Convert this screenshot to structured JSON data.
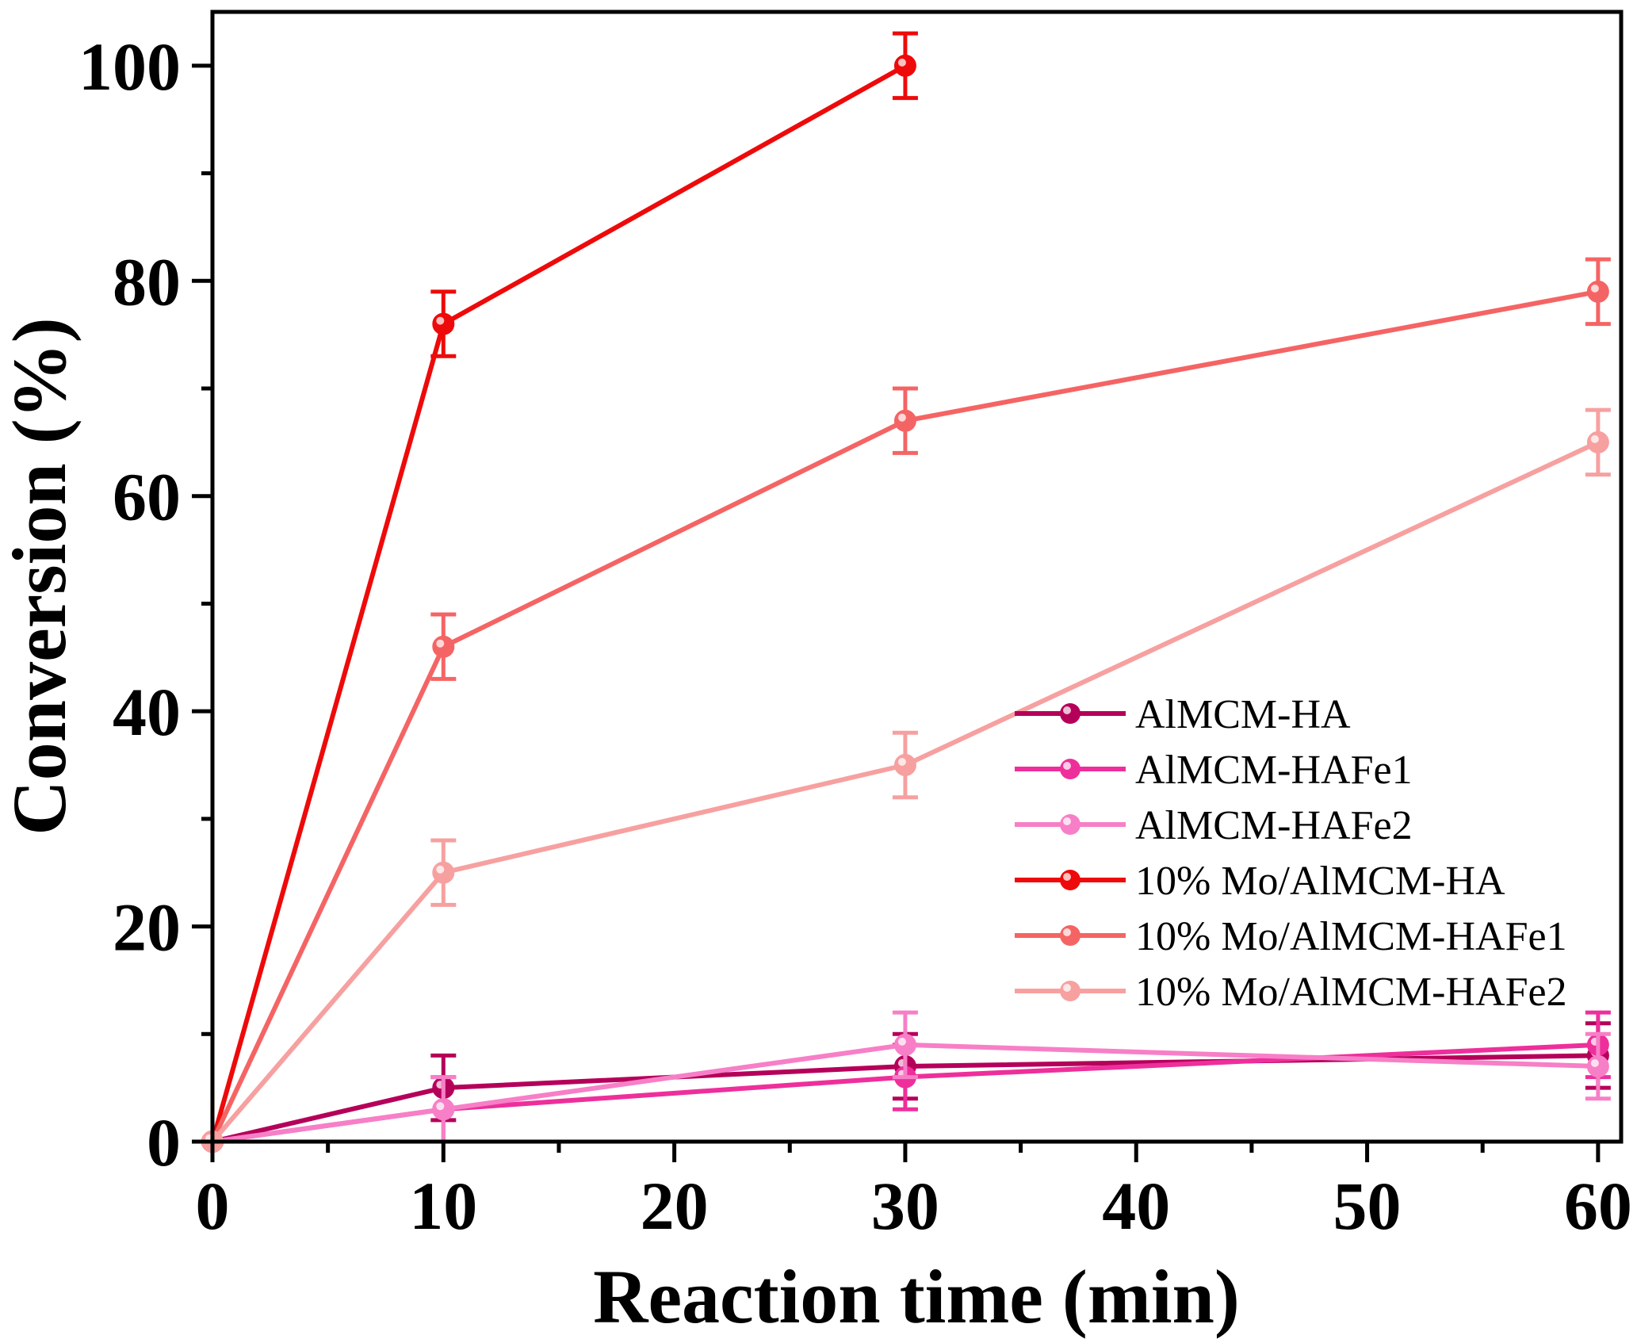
{
  "chart_data": {
    "type": "line",
    "title": "",
    "xlabel": "Reaction time (min)",
    "ylabel": "Conversion (%)",
    "xlim": [
      0,
      61
    ],
    "ylim": [
      0,
      105
    ],
    "xticks": [
      0,
      10,
      20,
      30,
      40,
      50,
      60
    ],
    "xtick_labels": [
      "0",
      "10",
      "20",
      "30",
      "40",
      "50",
      "60"
    ],
    "yticks": [
      0,
      20,
      40,
      60,
      80,
      100
    ],
    "ytick_labels": [
      "0",
      "20",
      "40",
      "60",
      "80",
      "100"
    ],
    "x_minor_step": 5,
    "y_minor_step": 10,
    "legend_position": "lower-right",
    "series": [
      {
        "name": "AlMCM-HA",
        "color": "#b5005a",
        "x": [
          0,
          10,
          30,
          60
        ],
        "y": [
          0,
          5,
          7,
          8
        ],
        "err": [
          0,
          3,
          3,
          3
        ]
      },
      {
        "name": "AlMCM-HAFe1",
        "color": "#ee2f9b",
        "x": [
          0,
          10,
          30,
          60
        ],
        "y": [
          0,
          3,
          6,
          9
        ],
        "err": [
          0,
          3,
          3,
          3
        ]
      },
      {
        "name": "AlMCM-HAFe2",
        "color": "#f77fc7",
        "x": [
          0,
          10,
          30,
          60
        ],
        "y": [
          0,
          3,
          9,
          7
        ],
        "err": [
          0,
          3,
          3,
          3
        ]
      },
      {
        "name": "10% Mo/AlMCM-HA",
        "color": "#ee0a0a",
        "x": [
          0,
          10,
          30
        ],
        "y": [
          0,
          76,
          100
        ],
        "err": [
          0,
          3,
          3
        ]
      },
      {
        "name": "10% Mo/AlMCM-HAFe1",
        "color": "#f56464",
        "x": [
          0,
          10,
          30,
          60
        ],
        "y": [
          0,
          46,
          67,
          79
        ],
        "err": [
          0,
          3,
          3,
          3
        ]
      },
      {
        "name": "10% Mo/AlMCM-HAFe2",
        "color": "#f7a0a0",
        "x": [
          0,
          10,
          30,
          60
        ],
        "y": [
          0,
          25,
          35,
          65
        ],
        "err": [
          0,
          3,
          3,
          3
        ]
      }
    ]
  }
}
